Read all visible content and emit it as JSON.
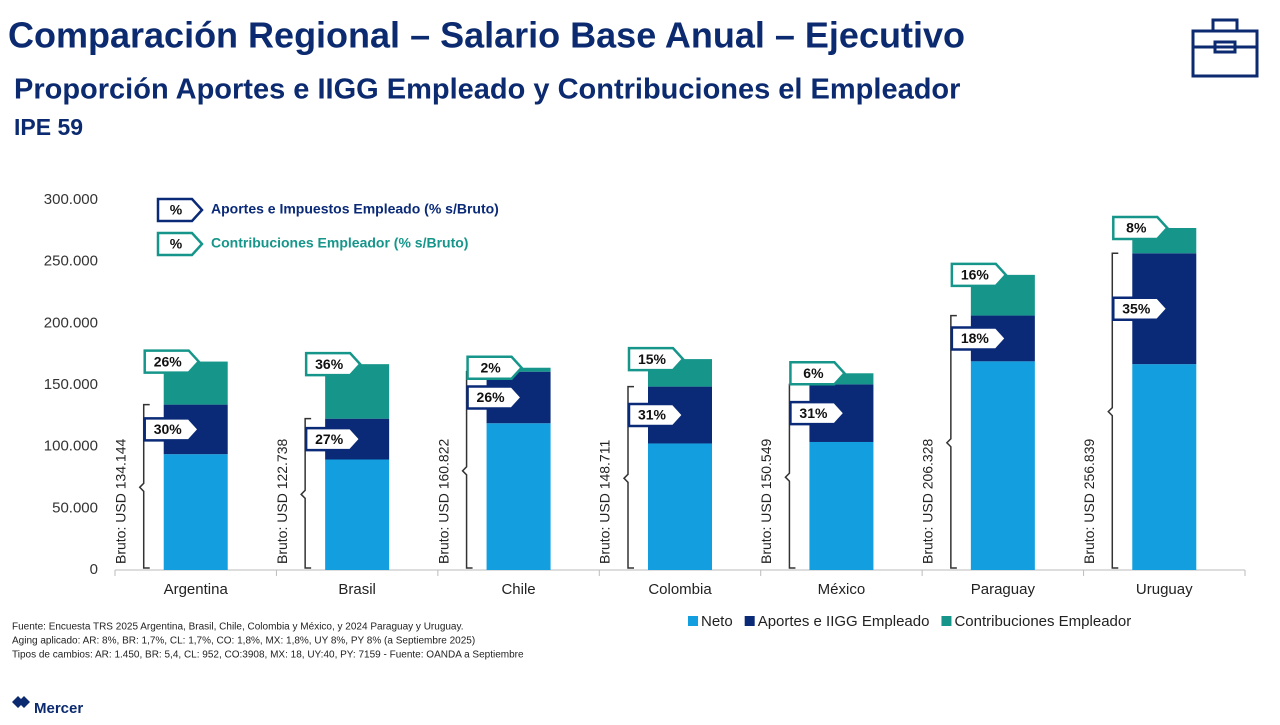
{
  "title": "Comparación Regional – Salario Base Anual – Ejecutivo",
  "subtitle": "Proporción Aportes e IIGG Empleado y Contribuciones el Empleador",
  "subtitle2": "IPE 59",
  "logo": "Mercer",
  "footnotes": [
    "Fuente: Encuesta TRS 2025 Argentina, Brasil, Chile, Colombia y México, y 2024 Paraguay y Uruguay.",
    "Aging aplicado: AR: 8%, BR: 1,7%, CL: 1,7%, CO: 1,8%, MX: 1,8%, UY 8%, PY 8% (a Septiembre 2025)",
    "Tipos de cambios: AR: 1.450, BR: 5,4,  CL: 952, CO:3908, MX: 18,  UY:40, PY: 7159 - Fuente: OANDA a Septiembre"
  ],
  "chart_data": {
    "type": "stacked_bar",
    "categories": [
      "Argentina",
      "Brasil",
      "Chile",
      "Colombia",
      "México",
      "Paraguay",
      "Uruguay"
    ],
    "series": [
      {
        "name": "Neto",
        "color": "#139fdf",
        "values": [
          93900,
          89600,
          119000,
          102600,
          103800,
          169200,
          166900
        ]
      },
      {
        "name": "Aportes e IIGG Empleado",
        "color": "#0a2a78",
        "values": [
          40200,
          33100,
          41800,
          46100,
          46700,
          37100,
          89900
        ]
      },
      {
        "name": "Contribuciones Empleador",
        "color": "#16968a",
        "values": [
          34900,
          44200,
          3200,
          22300,
          9000,
          33000,
          20500
        ]
      }
    ],
    "bruto_labels": [
      "Bruto: USD 134.144",
      "Bruto: USD 122.738",
      "Bruto: USD 160.822",
      "Bruto: USD 148.711",
      "Bruto: USD 150.549",
      "Bruto: USD 206.328",
      "Bruto: USD 256.839"
    ],
    "aportes_labels": [
      "30%",
      "27%",
      "26%",
      "31%",
      "31%",
      "18%",
      "35%"
    ],
    "contrib_labels": [
      "26%",
      "36%",
      "2%",
      "15%",
      "6%",
      "16%",
      "8%"
    ],
    "ylim": [
      0,
      300000
    ],
    "yticks": [
      0,
      {
        "value": 50000,
        "label": "50.000"
      },
      {
        "value": 100000,
        "label": "100.000"
      },
      {
        "value": 150000,
        "label": "150.000"
      },
      {
        "value": 200000,
        "label": "200.000"
      },
      {
        "value": 250000,
        "label": "250.000"
      },
      {
        "value": 300000,
        "label": "300.000"
      }
    ],
    "inner_legend": [
      {
        "symbol": "%",
        "text": "Aportes e Impuestos Empleado (% s/Bruto)",
        "color": "#0a2a78"
      },
      {
        "symbol": "%",
        "text": "Contribuciones Empleador (% s/Bruto)",
        "color": "#16968a"
      }
    ]
  }
}
